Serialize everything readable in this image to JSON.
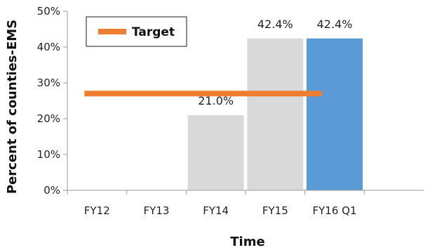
{
  "chart_data": {
    "type": "bar",
    "title": "",
    "xlabel": "Time",
    "ylabel": "Percent of counties-EMS",
    "categories": [
      "FY12",
      "FY13",
      "FY14",
      "FY15",
      "FY16 Q1"
    ],
    "values": [
      null,
      null,
      21.0,
      42.4,
      42.4
    ],
    "data_labels": [
      "",
      "",
      "21.0%",
      "42.4%",
      "42.4%"
    ],
    "bar_colors": [
      "#d9d9d9",
      "#d9d9d9",
      "#d9d9d9",
      "#d9d9d9",
      "#5b9bd5"
    ],
    "ylim": [
      0,
      50
    ],
    "yticks": [
      0,
      10,
      20,
      30,
      40,
      50
    ],
    "ytick_labels": [
      "0%",
      "10%",
      "20%",
      "30%",
      "40%",
      "50%"
    ],
    "target": {
      "name": "Target",
      "value": 27,
      "color": "#ed7d31",
      "x_range": [
        "FY12",
        "FY16 Q1"
      ]
    },
    "legend": {
      "placement": "top-left",
      "entries": [
        "Target"
      ]
    },
    "grid": false
  }
}
